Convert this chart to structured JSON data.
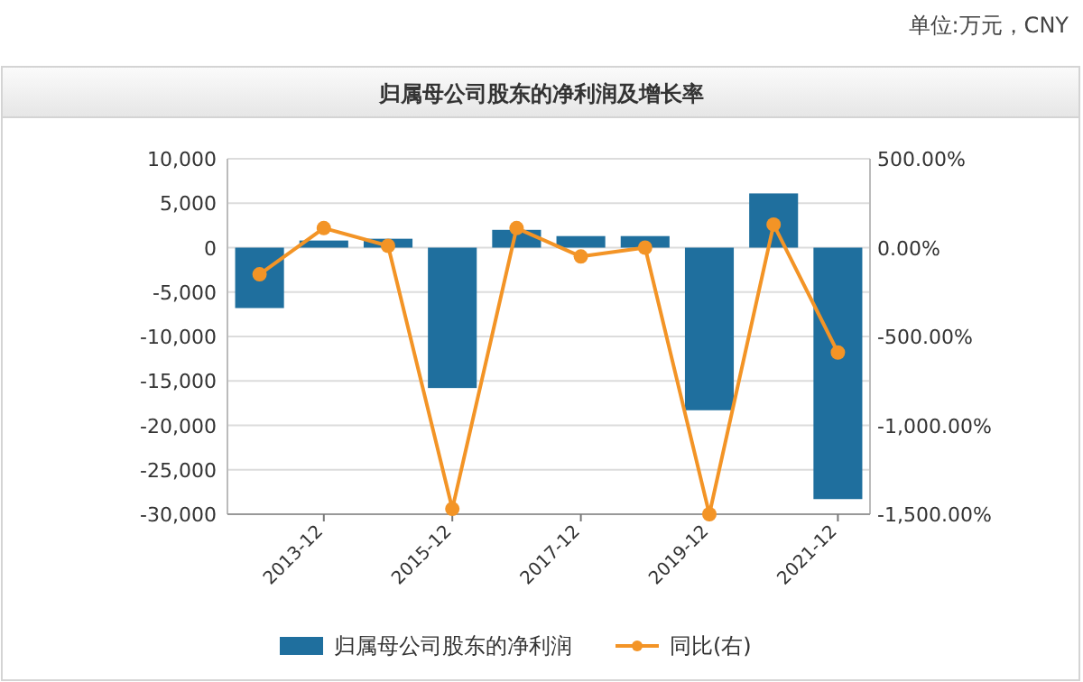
{
  "chart_data": {
    "type": "bar",
    "title": "归属母公司股东的净利润及增长率",
    "annotations": [
      "单位:万元，CNY"
    ],
    "categories": [
      null,
      "2013-12",
      null,
      "2015-12",
      null,
      "2017-12",
      null,
      "2019-12",
      null,
      "2021-12"
    ],
    "series": [
      {
        "name": "归属母公司股东的净利润",
        "color": "#1f6f9e",
        "values": [
          -6800,
          800,
          1000,
          -15800,
          2000,
          1300,
          1300,
          -18300,
          6100,
          -28300
        ]
      },
      {
        "name": "同比(右)",
        "type": "line",
        "axis": "y2",
        "color": "#f39426",
        "marker": "circle",
        "values": [
          -150,
          110,
          10,
          -1470,
          110,
          -50,
          0,
          -1500,
          130,
          -590
        ]
      }
    ],
    "ylim": [
      -30000,
      10000
    ],
    "yticks": [
      {
        "value": -30000,
        "label": "-30,000"
      },
      {
        "value": -25000,
        "label": "-25,000"
      },
      {
        "value": -20000,
        "label": "-20,000"
      },
      {
        "value": -15000,
        "label": "-15,000"
      },
      {
        "value": -10000,
        "label": "-10,000"
      },
      {
        "value": -5000,
        "label": "-5,000"
      },
      {
        "value": 0,
        "label": "0"
      },
      {
        "value": 5000,
        "label": "5,000"
      },
      {
        "value": 10000,
        "label": "10,000"
      }
    ],
    "y2lim": [
      -1500,
      500
    ],
    "y2ticks": [
      {
        "value": -1500,
        "label": "-1,500.00%"
      },
      {
        "value": -1000,
        "label": "-1,000.00%"
      },
      {
        "value": -500,
        "label": "-500.00%"
      },
      {
        "value": 0,
        "label": "0.00%"
      },
      {
        "value": 500,
        "label": "500.00%"
      }
    ],
    "grid": "y",
    "legend": "bottom"
  }
}
